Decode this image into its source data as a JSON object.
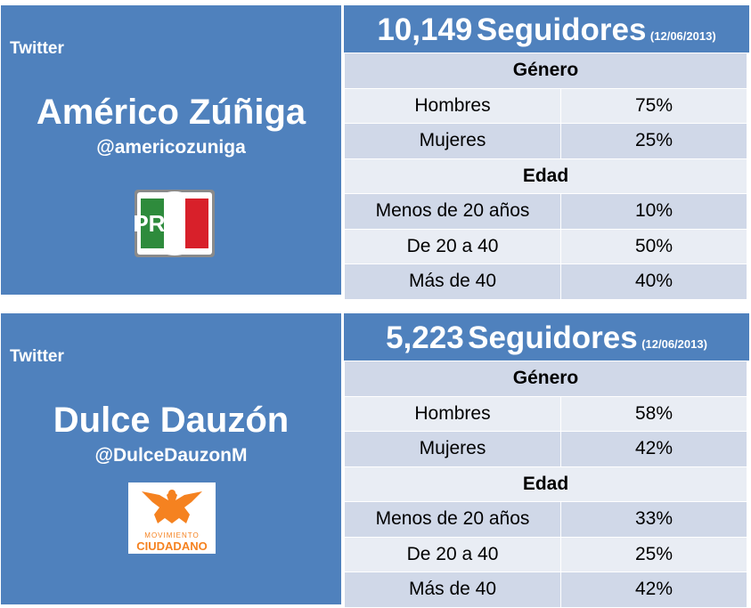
{
  "cards": [
    {
      "platform": "Twitter",
      "name": "Américo Zúñiga",
      "handle": "@americozuniga",
      "party_logo": {
        "icon": "pri-logo",
        "text": "PRI",
        "colors": [
          "#2e8b3c",
          "#ffffff",
          "#d8202a"
        ]
      },
      "followers_count": "10,149",
      "followers_label": "Seguidores",
      "date": "(12/06/2013)",
      "gender_title": "Género",
      "gender": [
        {
          "label": "Hombres",
          "value": "75%"
        },
        {
          "label": "Mujeres",
          "value": "25%"
        }
      ],
      "age_title": "Edad",
      "age": [
        {
          "label": "Menos de 20 años",
          "value": "10%"
        },
        {
          "label": "De 20 a 40",
          "value": "50%"
        },
        {
          "label": "Más de 40",
          "value": "40%"
        }
      ]
    },
    {
      "platform": "Twitter",
      "name": "Dulce Dauzón",
      "handle": "@DulceDauzonM",
      "party_logo": {
        "icon": "movimiento-ciudadano-logo",
        "line1": "MOVIMIENTO",
        "line2": "CIUDADANO",
        "colors": [
          "#f58220",
          "#ffffff"
        ]
      },
      "followers_count": "5,223",
      "followers_label": "Seguidores",
      "date": "(12/06/2013)",
      "gender_title": "Género",
      "gender": [
        {
          "label": "Hombres",
          "value": "58%"
        },
        {
          "label": "Mujeres",
          "value": "42%"
        }
      ],
      "age_title": "Edad",
      "age": [
        {
          "label": "Menos de 20 años",
          "value": "33%"
        },
        {
          "label": "De 20 a 40",
          "value": "25%"
        },
        {
          "label": "Más de 40",
          "value": "42%"
        }
      ]
    }
  ],
  "colors": {
    "header_blue": "#4f81bd",
    "row_dark": "#d0d8e8",
    "row_light": "#e9edf4"
  }
}
